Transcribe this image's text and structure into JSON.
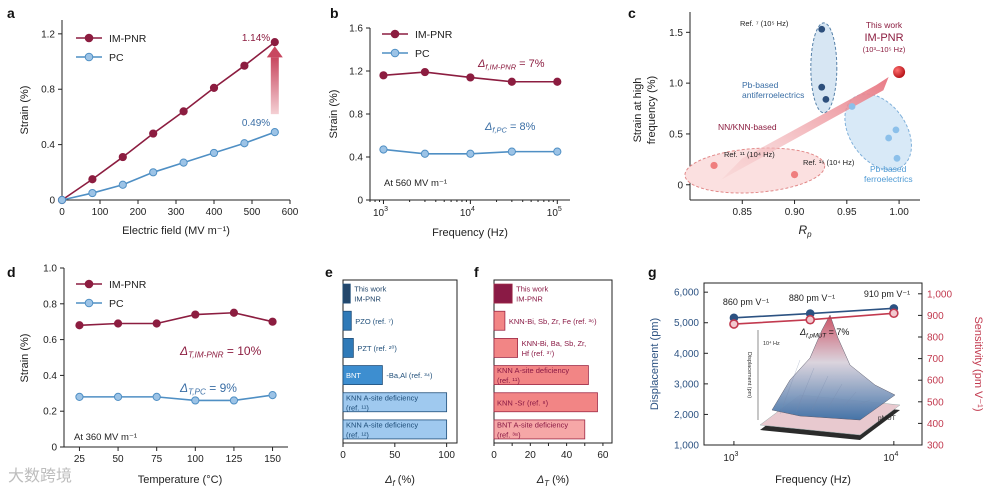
{
  "colors": {
    "imp": "#8c1d40",
    "pc": "#4f8fc4",
    "pc_fill": "#9cc3e6",
    "axis": "#222222",
    "blue_text": "#3a6ea5",
    "bar_dark": "#23476b",
    "bar_blue": "#2f7ab8",
    "bar_blue_light": "#9fc9ef",
    "bar_red_dark": "#8a1a45",
    "bar_red": "#f28585",
    "bar_red_light": "#f6a7a7",
    "g_blue": "#2c5282",
    "g_red": "#c23a4f"
  },
  "chart_data": [
    {
      "panel": "a",
      "type": "line",
      "xlabel": "Electric field (MV m⁻¹)",
      "ylabel": "Strain (%)",
      "xlim": [
        0,
        600
      ],
      "ylim": [
        0,
        1.3
      ],
      "xticks": [
        "0",
        "100",
        "200",
        "300",
        "400",
        "500",
        "600"
      ],
      "yticks": [
        "0",
        "0.4",
        "0.8",
        "1.2"
      ],
      "legend": [
        "IM-PNR",
        "PC"
      ],
      "series": [
        {
          "name": "IM-PNR",
          "x": [
            0,
            80,
            160,
            240,
            320,
            400,
            480,
            560
          ],
          "y": [
            0,
            0.15,
            0.31,
            0.48,
            0.64,
            0.81,
            0.97,
            1.14
          ]
        },
        {
          "name": "PC",
          "x": [
            0,
            80,
            160,
            240,
            320,
            400,
            480,
            560
          ],
          "y": [
            0,
            0.05,
            0.11,
            0.2,
            0.27,
            0.34,
            0.41,
            0.49
          ]
        }
      ],
      "annotations": [
        "1.14%",
        "0.49%"
      ]
    },
    {
      "panel": "b",
      "type": "line",
      "xlabel": "Frequency (Hz)",
      "ylabel": "Strain (%)",
      "xscale": "log",
      "xlim": [
        700,
        140000
      ],
      "ylim": [
        0,
        1.6
      ],
      "xticks": [
        "10",
        "10",
        "10"
      ],
      "xtick_exp": [
        "3",
        "4",
        "5"
      ],
      "yticks": [
        "0",
        "0.4",
        "0.8",
        "1.2",
        "1.6"
      ],
      "legend": [
        "IM-PNR",
        "PC"
      ],
      "series": [
        {
          "name": "IM-PNR",
          "x": [
            1000,
            3000,
            10000,
            30000,
            100000
          ],
          "y": [
            1.16,
            1.19,
            1.14,
            1.1,
            1.1
          ]
        },
        {
          "name": "PC",
          "x": [
            1000,
            3000,
            10000,
            30000,
            100000
          ],
          "y": [
            0.47,
            0.43,
            0.43,
            0.45,
            0.45
          ]
        }
      ],
      "ann_imp": "Δ",
      "ann_imp_sub": "f,IM-PNR",
      "ann_imp_val": " = 7%",
      "ann_pc": "Δ",
      "ann_pc_sub": "f,PC",
      "ann_pc_val": " = 8%",
      "condition": "At 560 MV m⁻¹"
    },
    {
      "panel": "c",
      "type": "scatter",
      "xlabel": "R",
      "xlabel_sub": "p",
      "ylabel": "Strain at high frequency (%)",
      "ylabel_line1": "Strain at high",
      "ylabel_line2": "frequency (%)",
      "xlim": [
        0.8,
        1.02
      ],
      "ylim": [
        -0.15,
        1.7
      ],
      "xticks": [
        "0.85",
        "0.90",
        "0.95",
        "1.00"
      ],
      "yticks": [
        "0",
        "0.5",
        "1.0",
        "1.5"
      ],
      "groups": [
        {
          "name": "Pb-based antiferroelectrics",
          "line1": "Pb-based",
          "line2": "antiferroelectrics",
          "x": [
            0.926,
            0.926,
            0.93
          ],
          "y": [
            1.53,
            0.96,
            0.84
          ]
        },
        {
          "name": "NN/KNN-based",
          "x": [
            0.823,
            0.9
          ],
          "y": [
            0.19,
            0.1
          ]
        },
        {
          "name": "Pb-based ferroelectrics",
          "line1": "Pb-based",
          "line2": "ferroelectrics",
          "x": [
            0.955,
            0.99,
            0.997,
            0.998
          ],
          "y": [
            0.77,
            0.46,
            0.54,
            0.26
          ]
        }
      ],
      "this_work": {
        "x": 1.0,
        "y": 1.11,
        "label1": "This work",
        "label2": "IM-PNR",
        "label3": "(10³–10⁵ Hz)"
      },
      "refs": [
        "Ref. ⁷ (10⁵ Hz)",
        "Ref. ¹¹ (10⁴ Hz)",
        "Ref. ¹⁶ (10⁴ Hz)"
      ]
    },
    {
      "panel": "d",
      "type": "line",
      "xlabel": "Temperature (°C)",
      "ylabel": "Strain (%)",
      "xlim": [
        15,
        160
      ],
      "ylim": [
        0,
        1.0
      ],
      "xticks": [
        "25",
        "50",
        "75",
        "100",
        "125",
        "150"
      ],
      "yticks": [
        "0",
        "0.2",
        "0.4",
        "0.6",
        "0.8",
        "1.0"
      ],
      "legend": [
        "IM-PNR",
        "PC"
      ],
      "series": [
        {
          "name": "IM-PNR",
          "x": [
            25,
            50,
            75,
            100,
            125,
            150
          ],
          "y": [
            0.68,
            0.69,
            0.69,
            0.74,
            0.75,
            0.7
          ]
        },
        {
          "name": "PC",
          "x": [
            25,
            50,
            75,
            100,
            125,
            150
          ],
          "y": [
            0.28,
            0.28,
            0.28,
            0.26,
            0.26,
            0.29
          ]
        }
      ],
      "ann_imp": "Δ",
      "ann_imp_sub": "T,IM-PNR",
      "ann_imp_val": " = 10%",
      "ann_pc": "Δ",
      "ann_pc_sub": "T,PC",
      "ann_pc_val": " = 9%",
      "condition": "At 360 MV m⁻¹"
    },
    {
      "panel": "e",
      "type": "bar",
      "orientation": "horizontal",
      "xlabel": "Δ",
      "xlabel_sub": "f",
      "xlabel_unit": " (%)",
      "xlim": [
        0,
        110
      ],
      "xticks": [
        "0",
        "50",
        "100"
      ],
      "bars": [
        {
          "label": "This work IM-PNR",
          "line1": "This work",
          "line2": "IM-PNR",
          "value": 7
        },
        {
          "label": "PZO (ref. ⁷)",
          "value": 8
        },
        {
          "label": "PZT (ref. ²⁰)",
          "value": 10
        },
        {
          "label": "BNT-Ba,Al (ref. ³⁴)",
          "value": 38
        },
        {
          "label": "KNN A-site deficiency (ref. ¹¹)",
          "line1": "KNN A-site deficiency",
          "line2": "(ref. ¹¹)",
          "value": 100
        },
        {
          "label": "KNN A-site deficiency (ref. ¹²)",
          "line1": "KNN A-site deficiency",
          "line2": "(ref. ¹²)",
          "value": 100
        }
      ]
    },
    {
      "panel": "f",
      "type": "bar",
      "orientation": "horizontal",
      "xlabel": "Δ",
      "xlabel_sub": "T",
      "xlabel_unit": " (%)",
      "xlim": [
        0,
        65
      ],
      "xticks": [
        "0",
        "10",
        "20",
        "30",
        "40",
        "50",
        "60"
      ],
      "bars": [
        {
          "label": "This work IM-PNR",
          "line1": "This work",
          "line2": "IM-PNR",
          "value": 10
        },
        {
          "label": "KNN-Bi, Sb, Zr, Fe (ref. ³⁶)",
          "value": 6
        },
        {
          "label": "KNN-Bi, Ba, Sb, Zr, Hf (ref. ³⁷)",
          "line1": "KNN-Bi, Ba, Sb, Zr,",
          "line2": "Hf (ref. ³⁷)",
          "value": 13
        },
        {
          "label": "KNN A-site deficiency (ref. ¹¹)",
          "line1": "KNN A-site deficiency",
          "line2": "(ref. ¹¹)",
          "value": 52
        },
        {
          "label": "KNN -Sr (ref. ⁸)",
          "value": 57
        },
        {
          "label": "BNT A-site deficiency (ref. ³⁸)",
          "line1": "BNT A-site deficiency",
          "line2": "(ref. ³⁸)",
          "value": 50
        }
      ]
    },
    {
      "panel": "g",
      "type": "line",
      "xlabel": "Frequency (Hz)",
      "ylabel_left": "Displacement (pm)",
      "ylabel_right": "Sensitivity (pm V⁻¹)",
      "xscale": "log",
      "xlim": [
        650,
        15000
      ],
      "ylim_left": [
        1000,
        6300
      ],
      "ylim_right": [
        300,
        1050
      ],
      "xticks": [
        "10",
        "10"
      ],
      "xtick_exp": [
        "3",
        "4"
      ],
      "yticks_left": [
        "1,000",
        "2,000",
        "3,000",
        "4,000",
        "5,000",
        "6,000"
      ],
      "yticks_right": [
        "300",
        "400",
        "500",
        "600",
        "700",
        "800",
        "900",
        "1,000"
      ],
      "series": [
        {
          "name": "Displacement",
          "axis": "left",
          "x": [
            1000,
            3000,
            10000
          ],
          "y": [
            5160,
            5300,
            5470
          ]
        },
        {
          "name": "Sensitivity",
          "axis": "right",
          "x": [
            1000,
            3000,
            10000
          ],
          "y": [
            860,
            880,
            910
          ]
        }
      ],
      "point_labels": [
        "860 pm V⁻¹",
        "880 pm V⁻¹",
        "910 pm V⁻¹"
      ],
      "ann": "Δ",
      "ann_sub": "f,pMUT",
      "ann_val": " = 7%",
      "inset_label": "pMUT",
      "inset_axis": "Displacement (pm)",
      "inset_freq": "10⁴ Hz"
    }
  ],
  "panel_letters": [
    "a",
    "b",
    "c",
    "d",
    "e",
    "f",
    "g"
  ],
  "watermark": "大数跨境"
}
